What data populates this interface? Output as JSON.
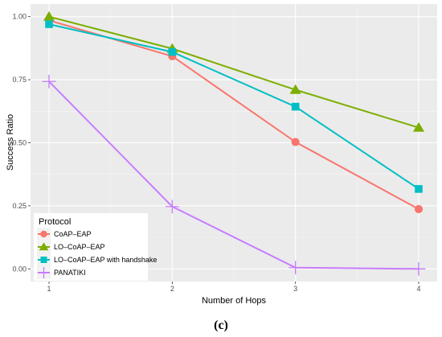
{
  "chart_data": {
    "type": "line",
    "title": "",
    "xlabel": "Number of Hops",
    "ylabel": "Success Ratio",
    "x": [
      1,
      2,
      3,
      4
    ],
    "x_ticks": [
      "1",
      "2",
      "3",
      "4"
    ],
    "y_ticks": [
      "0.00",
      "0.25",
      "0.50",
      "0.75",
      "1.00"
    ],
    "ylim": [
      0,
      1
    ],
    "xlim": [
      1,
      4
    ],
    "grid": true,
    "legend": {
      "title": "Protocol",
      "placement": "bottom-left"
    },
    "series": [
      {
        "name": "CoAP–EAP",
        "color": "#F8766D",
        "marker": "circle",
        "values": [
          0.985,
          0.843,
          0.503,
          0.237
        ]
      },
      {
        "name": "LO–CoAP–EAP",
        "color": "#7CAE00",
        "marker": "triangle",
        "values": [
          1.0,
          0.873,
          0.71,
          0.56
        ]
      },
      {
        "name": "LO–CoAP–EAP with handshake",
        "color": "#00BFC4",
        "marker": "square",
        "values": [
          0.97,
          0.86,
          0.643,
          0.317
        ]
      },
      {
        "name": "PANATIKI",
        "color": "#C77CFF",
        "marker": "plus",
        "values": [
          0.743,
          0.247,
          0.005,
          0.0
        ]
      }
    ]
  },
  "caption": "(c)"
}
